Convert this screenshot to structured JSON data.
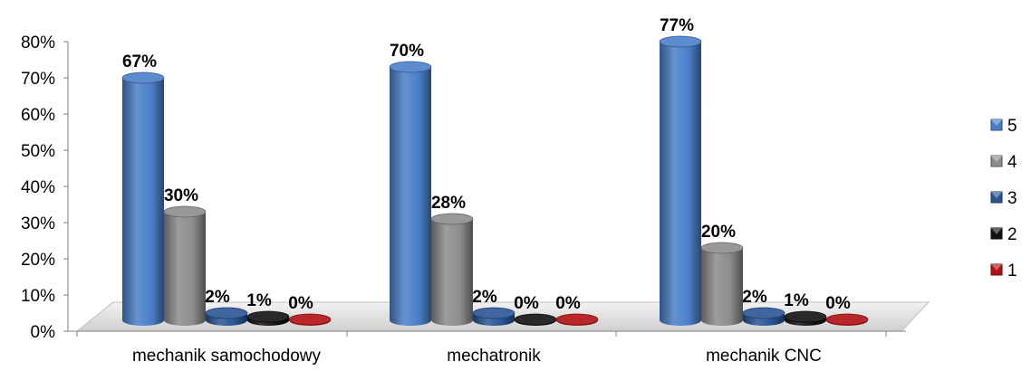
{
  "chart_data": {
    "type": "bar",
    "style": "3d-cylinder",
    "categories": [
      "mechanik samochodowy",
      "mechatronik",
      "mechanik CNC"
    ],
    "series": [
      {
        "name": "5",
        "values": [
          67,
          70,
          77
        ],
        "labels": [
          "67%",
          "70%",
          "77%"
        ],
        "color": "#4a7fc8"
      },
      {
        "name": "4",
        "values": [
          30,
          28,
          20
        ],
        "labels": [
          "30%",
          "28%",
          "20%"
        ],
        "color": "#8c8c8c"
      },
      {
        "name": "3",
        "values": [
          2,
          2,
          2
        ],
        "labels": [
          "2%",
          "2%",
          "2%"
        ],
        "color": "#2a5594"
      },
      {
        "name": "2",
        "values": [
          1,
          0,
          1
        ],
        "labels": [
          "1%",
          "0%",
          "1%"
        ],
        "color": "#111111"
      },
      {
        "name": "1",
        "values": [
          0,
          0,
          0
        ],
        "labels": [
          "0%",
          "0%",
          "0%"
        ],
        "color": "#b01010"
      }
    ],
    "ylim": [
      0,
      80
    ],
    "yticks": [
      "0%",
      "10%",
      "20%",
      "30%",
      "40%",
      "50%",
      "60%",
      "70%",
      "80%"
    ],
    "legend_position": "right",
    "grid": false
  }
}
